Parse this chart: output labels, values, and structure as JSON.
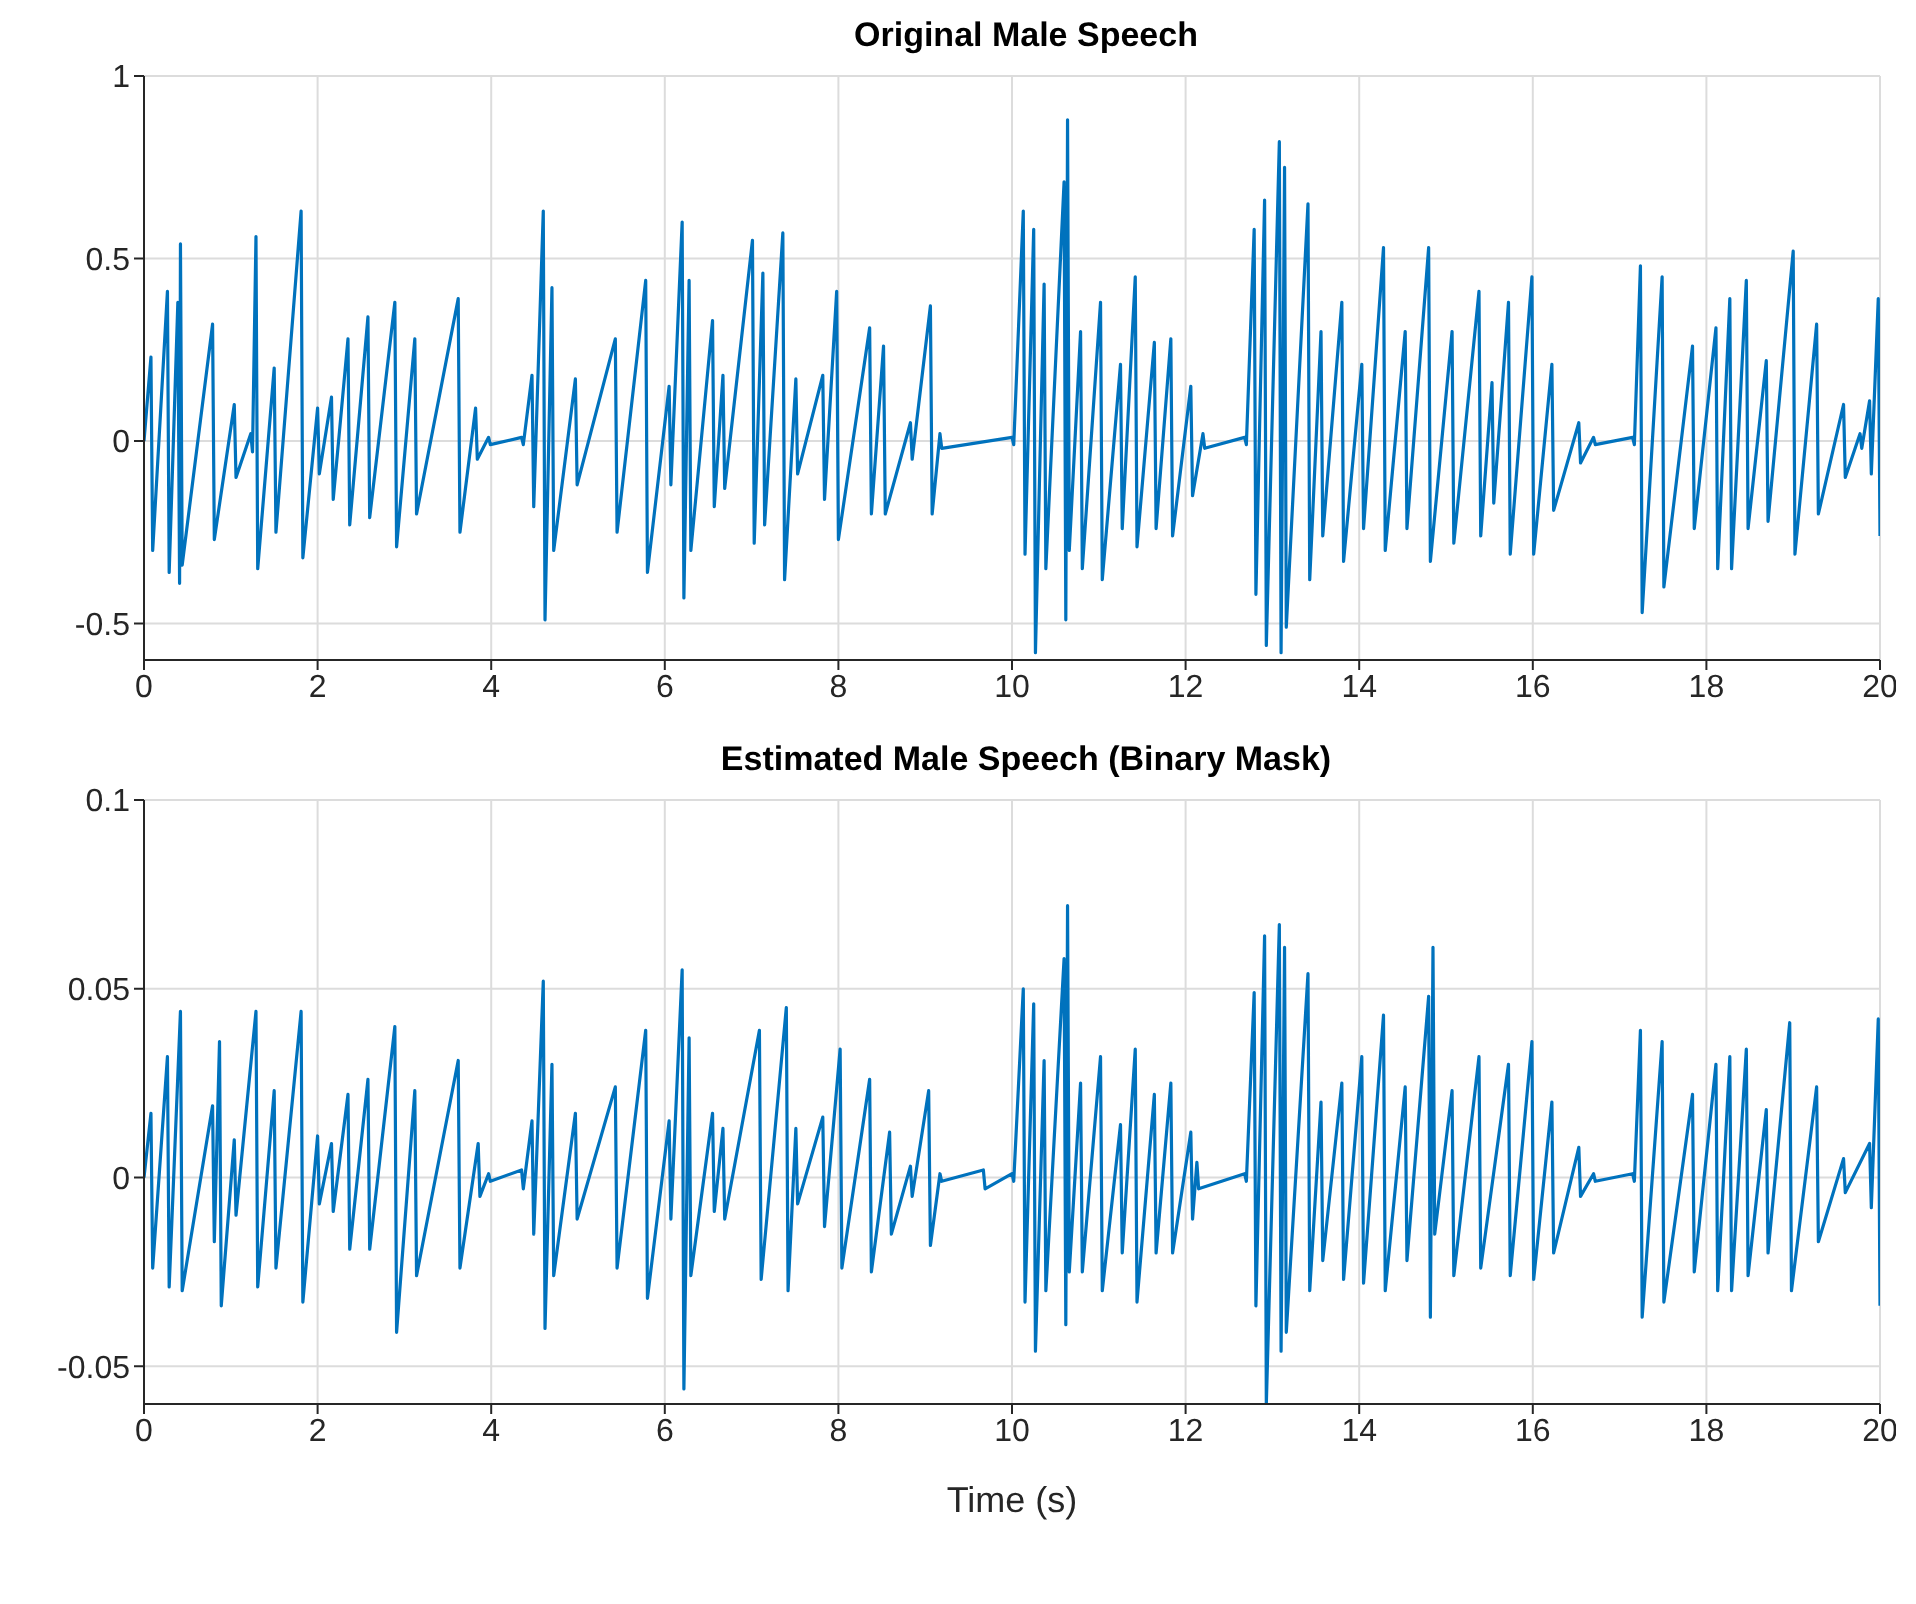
{
  "chart_data": [
    {
      "type": "line",
      "title": "Original Male Speech",
      "color": "#0072bd",
      "grid": true,
      "xlim": [
        0,
        20
      ],
      "xticks": [
        0,
        2,
        4,
        6,
        8,
        10,
        12,
        14,
        16,
        18,
        20
      ],
      "ylim": [
        -0.6,
        1
      ],
      "yticks": [
        -0.5,
        0,
        0.5,
        1
      ],
      "x": [
        0,
        0.08,
        0.1,
        0.27,
        0.29,
        0.39,
        0.41,
        0.42,
        0.44,
        0.79,
        0.81,
        1.04,
        1.06,
        1.23,
        1.25,
        1.29,
        1.31,
        1.5,
        1.52,
        1.81,
        1.83,
        2,
        2.02,
        2.16,
        2.18,
        2.35,
        2.37,
        2.58,
        2.6,
        2.89,
        2.91,
        3.12,
        3.14,
        3.62,
        3.64,
        3.82,
        3.84,
        3.97,
        3.99,
        4.35,
        4.37,
        4.47,
        4.49,
        4.6,
        4.62,
        4.7,
        4.72,
        4.97,
        4.99,
        5.43,
        5.45,
        5.78,
        5.8,
        6.05,
        6.07,
        6.2,
        6.22,
        6.28,
        6.3,
        6.55,
        6.57,
        6.67,
        6.69,
        7.01,
        7.03,
        7.13,
        7.15,
        7.36,
        7.38,
        7.51,
        7.53,
        7.82,
        7.84,
        7.98,
        8,
        8.36,
        8.38,
        8.52,
        8.54,
        8.83,
        8.85,
        9.06,
        9.08,
        9.17,
        9.19,
        10,
        10.02,
        10.13,
        10.15,
        10.25,
        10.27,
        10.37,
        10.39,
        10.6,
        10.62,
        10.64,
        10.66,
        10.79,
        10.81,
        11.02,
        11.04,
        11.25,
        11.27,
        11.42,
        11.44,
        11.64,
        11.66,
        11.83,
        11.85,
        12.06,
        12.08,
        12.2,
        12.22,
        12.68,
        12.7,
        12.79,
        12.81,
        12.91,
        12.93,
        13.08,
        13.1,
        13.14,
        13.16,
        13.41,
        13.43,
        13.56,
        13.58,
        13.8,
        13.82,
        14.03,
        14.05,
        14.28,
        14.3,
        14.53,
        14.55,
        14.8,
        14.82,
        15.07,
        15.09,
        15.38,
        15.4,
        15.53,
        15.55,
        15.72,
        15.74,
        15.99,
        16.01,
        16.22,
        16.24,
        16.53,
        16.55,
        16.7,
        16.72,
        17.15,
        17.17,
        17.24,
        17.26,
        17.49,
        17.51,
        17.84,
        17.86,
        18.11,
        18.13,
        18.27,
        18.29,
        18.46,
        18.48,
        18.69,
        18.71,
        19,
        19.02,
        19.27,
        19.29,
        19.58,
        19.6,
        19.77,
        19.79,
        19.88,
        19.9,
        19.98,
        20
      ],
      "values": [
        0,
        0.23,
        -0.3,
        0.41,
        -0.36,
        0.38,
        -0.39,
        0.54,
        -0.34,
        0.32,
        -0.27,
        0.1,
        -0.1,
        0.02,
        -0.03,
        0.56,
        -0.35,
        0.2,
        -0.25,
        0.63,
        -0.32,
        0.09,
        -0.09,
        0.12,
        -0.16,
        0.28,
        -0.23,
        0.34,
        -0.21,
        0.38,
        -0.29,
        0.28,
        -0.2,
        0.39,
        -0.25,
        0.09,
        -0.05,
        0.01,
        -0.01,
        0.01,
        -0.01,
        0.18,
        -0.18,
        0.63,
        -0.49,
        0.42,
        -0.3,
        0.17,
        -0.12,
        0.28,
        -0.25,
        0.44,
        -0.36,
        0.15,
        -0.12,
        0.6,
        -0.43,
        0.44,
        -0.3,
        0.33,
        -0.18,
        0.18,
        -0.13,
        0.55,
        -0.28,
        0.46,
        -0.23,
        0.57,
        -0.38,
        0.17,
        -0.09,
        0.18,
        -0.16,
        0.41,
        -0.27,
        0.31,
        -0.2,
        0.26,
        -0.2,
        0.05,
        -0.05,
        0.37,
        -0.2,
        0.02,
        -0.02,
        0.01,
        -0.01,
        0.63,
        -0.31,
        0.58,
        -0.58,
        0.43,
        -0.35,
        0.71,
        -0.49,
        0.88,
        -0.3,
        0.3,
        -0.35,
        0.38,
        -0.38,
        0.21,
        -0.24,
        0.45,
        -0.29,
        0.27,
        -0.24,
        0.28,
        -0.26,
        0.15,
        -0.15,
        0.02,
        -0.02,
        0.01,
        -0.01,
        0.58,
        -0.42,
        0.66,
        -0.56,
        0.82,
        -0.58,
        0.75,
        -0.51,
        0.65,
        -0.38,
        0.3,
        -0.26,
        0.38,
        -0.33,
        0.21,
        -0.24,
        0.53,
        -0.3,
        0.3,
        -0.24,
        0.53,
        -0.33,
        0.3,
        -0.28,
        0.41,
        -0.26,
        0.16,
        -0.17,
        0.38,
        -0.31,
        0.45,
        -0.31,
        0.21,
        -0.19,
        0.05,
        -0.06,
        0.01,
        -0.01,
        0.01,
        -0.01,
        0.48,
        -0.47,
        0.45,
        -0.4,
        0.26,
        -0.24,
        0.31,
        -0.35,
        0.39,
        -0.35,
        0.44,
        -0.24,
        0.22,
        -0.22,
        0.52,
        -0.31,
        0.32,
        -0.2,
        0.1,
        -0.1,
        0.02,
        -0.02,
        0.11,
        -0.09,
        0.39,
        -0.26
      ]
    },
    {
      "type": "line",
      "title": "Estimated Male Speech (Binary Mask)",
      "xlabel": "Time (s)",
      "color": "#0072bd",
      "grid": true,
      "xlim": [
        0,
        20
      ],
      "xticks": [
        0,
        2,
        4,
        6,
        8,
        10,
        12,
        14,
        16,
        18,
        20
      ],
      "ylim": [
        -0.06,
        0.1
      ],
      "yticks": [
        -0.05,
        0,
        0.05,
        0.1
      ],
      "x": [
        0,
        0.08,
        0.1,
        0.27,
        0.29,
        0.42,
        0.44,
        0.79,
        0.81,
        0.87,
        0.89,
        1.04,
        1.06,
        1.29,
        1.31,
        1.5,
        1.52,
        1.81,
        1.83,
        2,
        2.02,
        2.16,
        2.18,
        2.35,
        2.37,
        2.58,
        2.6,
        2.89,
        2.91,
        3.12,
        3.14,
        3.62,
        3.64,
        3.85,
        3.87,
        3.97,
        3.99,
        4.35,
        4.37,
        4.47,
        4.49,
        4.6,
        4.62,
        4.7,
        4.72,
        4.97,
        4.99,
        5.43,
        5.45,
        5.78,
        5.8,
        6.05,
        6.07,
        6.2,
        6.22,
        6.28,
        6.3,
        6.55,
        6.57,
        6.67,
        6.69,
        7.09,
        7.11,
        7.4,
        7.42,
        7.51,
        7.53,
        7.82,
        7.84,
        8.02,
        8.04,
        8.36,
        8.38,
        8.59,
        8.61,
        8.83,
        8.85,
        9.04,
        9.06,
        9.17,
        9.19,
        9.67,
        9.69,
        10,
        10.02,
        10.13,
        10.15,
        10.25,
        10.27,
        10.37,
        10.39,
        10.6,
        10.62,
        10.64,
        10.66,
        10.79,
        10.81,
        11.02,
        11.04,
        11.25,
        11.27,
        11.42,
        11.44,
        11.64,
        11.66,
        11.83,
        11.85,
        12.06,
        12.08,
        12.13,
        12.15,
        12.68,
        12.7,
        12.79,
        12.81,
        12.91,
        12.93,
        13.08,
        13.1,
        13.14,
        13.16,
        13.41,
        13.43,
        13.56,
        13.58,
        13.8,
        13.82,
        14.03,
        14.05,
        14.28,
        14.3,
        14.53,
        14.55,
        14.8,
        14.82,
        14.85,
        14.87,
        15.07,
        15.09,
        15.38,
        15.4,
        15.72,
        15.74,
        15.99,
        16.01,
        16.22,
        16.24,
        16.53,
        16.55,
        16.7,
        16.72,
        17.15,
        17.17,
        17.24,
        17.26,
        17.49,
        17.51,
        17.84,
        17.86,
        18.11,
        18.13,
        18.27,
        18.29,
        18.46,
        18.48,
        18.69,
        18.71,
        18.96,
        18.98,
        19.27,
        19.29,
        19.58,
        19.6,
        19.88,
        19.9,
        19.98,
        20
      ],
      "values": [
        0,
        0.017,
        -0.024,
        0.032,
        -0.029,
        0.044,
        -0.03,
        0.019,
        -0.017,
        0.036,
        -0.034,
        0.01,
        -0.01,
        0.044,
        -0.029,
        0.023,
        -0.024,
        0.044,
        -0.033,
        0.011,
        -0.007,
        0.009,
        -0.009,
        0.022,
        -0.019,
        0.026,
        -0.019,
        0.04,
        -0.041,
        0.023,
        -0.026,
        0.031,
        -0.024,
        0.009,
        -0.005,
        0.001,
        -0.001,
        0.002,
        -0.003,
        0.015,
        -0.015,
        0.052,
        -0.04,
        0.03,
        -0.026,
        0.017,
        -0.011,
        0.024,
        -0.024,
        0.039,
        -0.032,
        0.015,
        -0.011,
        0.055,
        -0.056,
        0.037,
        -0.026,
        0.017,
        -0.009,
        0.013,
        -0.011,
        0.039,
        -0.027,
        0.045,
        -0.03,
        0.013,
        -0.007,
        0.016,
        -0.013,
        0.034,
        -0.024,
        0.026,
        -0.025,
        0.012,
        -0.015,
        0.003,
        -0.005,
        0.023,
        -0.018,
        0.001,
        -0.001,
        0.002,
        -0.003,
        0.001,
        -0.001,
        0.05,
        -0.033,
        0.046,
        -0.046,
        0.031,
        -0.03,
        0.058,
        -0.039,
        0.072,
        -0.025,
        0.025,
        -0.025,
        0.032,
        -0.03,
        0.014,
        -0.02,
        0.034,
        -0.033,
        0.022,
        -0.02,
        0.025,
        -0.02,
        0.012,
        -0.011,
        0.004,
        -0.003,
        0.001,
        -0.001,
        0.049,
        -0.034,
        0.064,
        -0.06,
        0.067,
        -0.046,
        0.061,
        -0.041,
        0.054,
        -0.03,
        0.02,
        -0.022,
        0.025,
        -0.027,
        0.032,
        -0.028,
        0.043,
        -0.03,
        0.024,
        -0.022,
        0.048,
        -0.037,
        0.061,
        -0.015,
        0.023,
        -0.026,
        0.032,
        -0.024,
        0.03,
        -0.026,
        0.036,
        -0.027,
        0.02,
        -0.02,
        0.008,
        -0.005,
        0.001,
        -0.001,
        0.001,
        -0.001,
        0.039,
        -0.037,
        0.036,
        -0.033,
        0.022,
        -0.025,
        0.03,
        -0.03,
        0.032,
        -0.03,
        0.034,
        -0.026,
        0.018,
        -0.02,
        0.041,
        -0.03,
        0.024,
        -0.017,
        0.005,
        -0.004,
        0.009,
        -0.008,
        0.042,
        -0.034
      ]
    }
  ]
}
